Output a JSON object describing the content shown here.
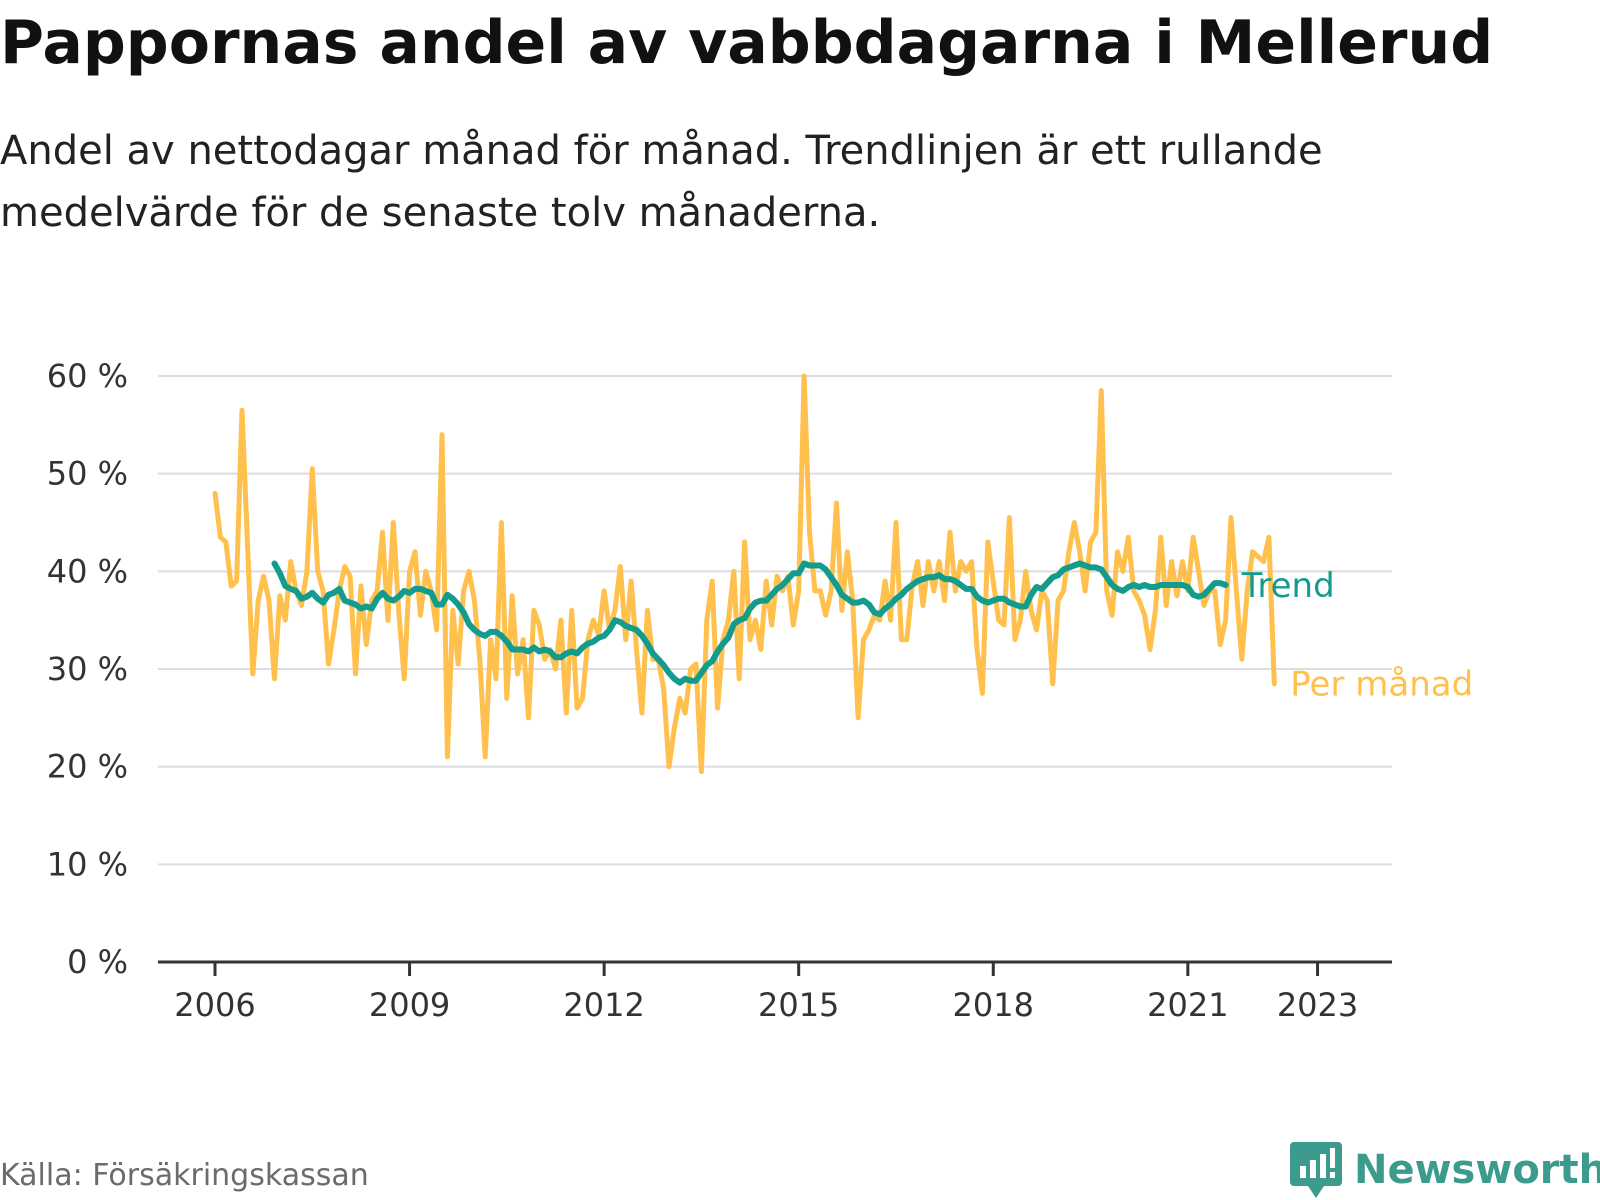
{
  "title": "Pappornas andel av vabbdagarna i Mellerud",
  "subtitle": "Andel av nettodagar månad för månad. Trendlinjen är ett rullande medelvärde för de senaste tolv månaderna.",
  "source": "Källa: Försäkringskassan",
  "brand": {
    "name": "Newsworthy",
    "icon": "bar-chart-bubble-icon"
  },
  "colors": {
    "monthly": "#ffc04d",
    "trend": "#139c8d",
    "grid": "#dddddd",
    "axis": "#333333"
  },
  "chart_data": {
    "type": "line",
    "xlabel": "",
    "ylabel": "",
    "xlim": [
      2006.0,
      2023.3
    ],
    "ylim": [
      0,
      60
    ],
    "x_ticks": [
      {
        "value": 2006,
        "label": "2006"
      },
      {
        "value": 2009,
        "label": "2009"
      },
      {
        "value": 2012,
        "label": "2012"
      },
      {
        "value": 2015,
        "label": "2015"
      },
      {
        "value": 2018,
        "label": "2018"
      },
      {
        "value": 2021,
        "label": "2021"
      },
      {
        "value": 2023,
        "label": "2023"
      }
    ],
    "y_ticks": [
      {
        "value": 0,
        "label": "0 %"
      },
      {
        "value": 10,
        "label": "10 %"
      },
      {
        "value": 20,
        "label": "20 %"
      },
      {
        "value": 30,
        "label": "30 %"
      },
      {
        "value": 40,
        "label": "40 %"
      },
      {
        "value": 50,
        "label": "50 %"
      },
      {
        "value": 60,
        "label": "60 %"
      }
    ],
    "grid": true,
    "legend": "direct labels at line ends",
    "series": [
      {
        "name": "Per månad",
        "color": "#ffc04d",
        "x_start": 2006.0,
        "step": 0.08333,
        "values": [
          48,
          43.5,
          43,
          38.5,
          39,
          56.5,
          43,
          29.5,
          37,
          39.5,
          37,
          29,
          37.5,
          35,
          41,
          38,
          36.5,
          40,
          50.5,
          40,
          38,
          30.5,
          34,
          38,
          40.5,
          39.5,
          29.5,
          38.5,
          32.5,
          37,
          38,
          44,
          35,
          45,
          36,
          29,
          40,
          42,
          35.5,
          40,
          38,
          34,
          54,
          21,
          36,
          30.5,
          38,
          40,
          37,
          31,
          21,
          33,
          29,
          45,
          27,
          37.5,
          29.5,
          33,
          25,
          36,
          34.5,
          31,
          32,
          30,
          35,
          25.5,
          36,
          26,
          27,
          33,
          35,
          33.5,
          38,
          34,
          36,
          40.5,
          33,
          39,
          32,
          25.5,
          36,
          31,
          31,
          28,
          20,
          24,
          27,
          25.5,
          30,
          30.5,
          19.5,
          35,
          39,
          26,
          33,
          35,
          40,
          29,
          43,
          33,
          35,
          32,
          39,
          34.5,
          39.5,
          38,
          39.5,
          34.5,
          38,
          60,
          44,
          38,
          38,
          35.5,
          38,
          47,
          36,
          42,
          37,
          25,
          33,
          34,
          35.5,
          35,
          39,
          35,
          45,
          33,
          33,
          38.5,
          41,
          36.5,
          41,
          38,
          41,
          37,
          44,
          38,
          41,
          40,
          41,
          32,
          27.5,
          43,
          39,
          35,
          34.5,
          45.5,
          33,
          35,
          40,
          36,
          34,
          38,
          37,
          28.5,
          37,
          38,
          42,
          45,
          42,
          38,
          43,
          44,
          58.5,
          38,
          35.5,
          42,
          40,
          43.5,
          38,
          37,
          35.5,
          32,
          36,
          43.5,
          36.5,
          41,
          37.5,
          41,
          38,
          43.5,
          40,
          36.5,
          38,
          38,
          32.5,
          35,
          45.5,
          38,
          31,
          38,
          42,
          41.5,
          41,
          43.5,
          28.5
        ]
      },
      {
        "name": "Trend",
        "color": "#139c8d",
        "x_start": 2006.917,
        "step": 0.08333,
        "values": [
          40.8,
          39.8,
          38.5,
          38.2,
          38,
          37.2,
          37.4,
          37.8,
          37.2,
          36.8,
          37.6,
          37.8,
          38.2,
          37,
          36.8,
          36.6,
          36.2,
          36.4,
          36.2,
          37.2,
          37.8,
          37.2,
          37,
          37.4,
          38,
          37.8,
          38.2,
          38.2,
          38,
          37.8,
          36.6,
          36.6,
          37.6,
          37.2,
          36.6,
          35.8,
          34.6,
          34,
          33.6,
          33.4,
          33.8,
          33.8,
          33.4,
          32.8,
          32,
          32,
          32,
          31.8,
          32.2,
          31.8,
          32,
          31.8,
          31.2,
          31.2,
          31.6,
          31.8,
          31.6,
          32.2,
          32.6,
          32.8,
          33.2,
          33.4,
          34,
          35,
          34.8,
          34.4,
          34.2,
          34,
          33.4,
          32.6,
          31.6,
          31,
          30.4,
          29.6,
          29,
          28.6,
          29,
          28.8,
          28.8,
          29.6,
          30.4,
          30.8,
          31.8,
          32.6,
          33.2,
          34.6,
          35,
          35.2,
          36.2,
          36.8,
          37,
          37,
          37.6,
          38.2,
          38.6,
          39.2,
          39.8,
          39.8,
          40.8,
          40.6,
          40.6,
          40.6,
          40.2,
          39.4,
          38.6,
          37.6,
          37.2,
          36.8,
          36.8,
          37,
          36.6,
          35.8,
          35.6,
          36.2,
          36.6,
          37.2,
          37.6,
          38.2,
          38.6,
          39,
          39.2,
          39.4,
          39.4,
          39.6,
          39.2,
          39.2,
          39,
          38.6,
          38.2,
          38.2,
          37.4,
          37,
          36.8,
          37,
          37.2,
          37.2,
          36.8,
          36.6,
          36.4,
          36.4,
          37.6,
          38.4,
          38.2,
          38.8,
          39.4,
          39.6,
          40.2,
          40.4,
          40.6,
          40.8,
          40.6,
          40.4,
          40.4,
          40.2,
          39.4,
          38.6,
          38.2,
          38,
          38.4,
          38.6,
          38.4,
          38.6,
          38.4,
          38.4,
          38.6,
          38.6,
          38.6,
          38.6,
          38.6,
          38.4,
          37.6,
          37.4,
          37.6,
          38.2,
          38.8,
          38.8,
          38.6
        ]
      }
    ]
  }
}
